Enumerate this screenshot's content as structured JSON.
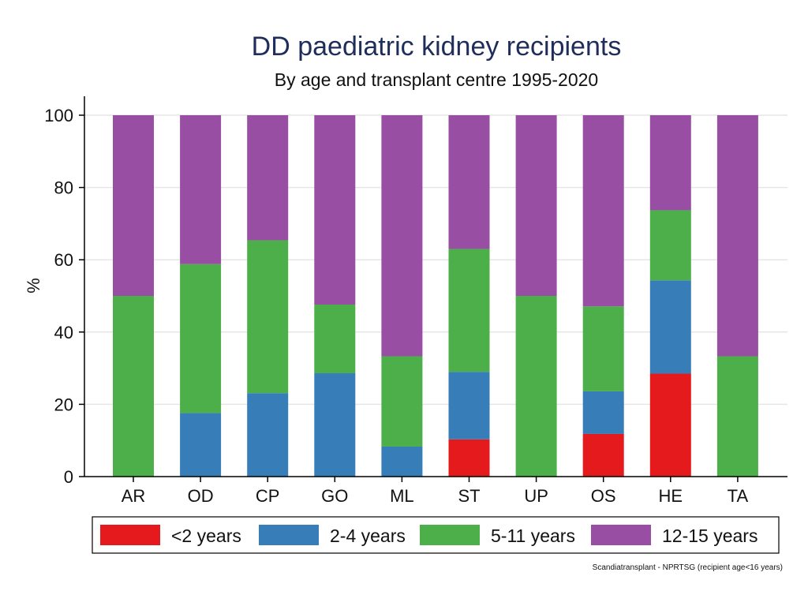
{
  "chart_data": {
    "type": "bar",
    "stacked": true,
    "title": "DD paediatric kidney recipients",
    "subtitle": "By age and transplant centre 1995-2020",
    "xlabel": "",
    "ylabel": "%",
    "ylim": [
      0,
      100
    ],
    "yticks": [
      0,
      20,
      40,
      60,
      80,
      100
    ],
    "grid": true,
    "legend_position": "bottom",
    "categories": [
      "AR",
      "OD",
      "CP",
      "GO",
      "ML",
      "ST",
      "UP",
      "OS",
      "HE",
      "TA"
    ],
    "series": [
      {
        "name": "<2 years",
        "color": "#e41a1c",
        "values": [
          0,
          0,
          0,
          0,
          0,
          10.3,
          0,
          11.8,
          28.5,
          0
        ]
      },
      {
        "name": "2-4 years",
        "color": "#377eb8",
        "values": [
          0,
          17.6,
          23.1,
          28.6,
          8.3,
          18.7,
          0,
          11.8,
          25.8,
          0
        ]
      },
      {
        "name": "5-11 years",
        "color": "#4daf4a",
        "values": [
          50,
          41.2,
          42.3,
          19.0,
          25.0,
          34.0,
          50,
          23.5,
          19.4,
          33.3
        ]
      },
      {
        "name": "12-15 years",
        "color": "#984ea3",
        "values": [
          50,
          41.2,
          34.6,
          52.4,
          66.7,
          37.0,
          50,
          52.9,
          26.3,
          66.7
        ]
      }
    ],
    "note": "Scandiatransplant - NPRTSG (recipient age<16 years)"
  }
}
